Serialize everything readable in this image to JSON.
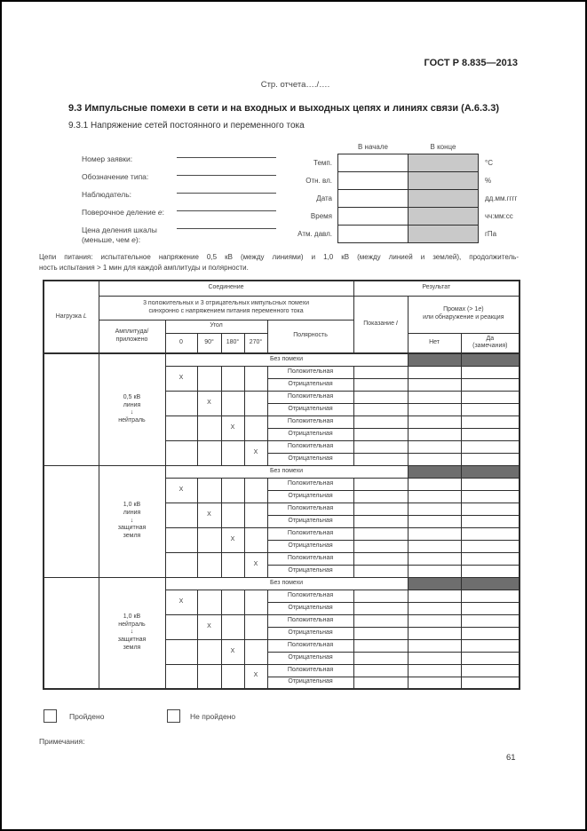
{
  "page": {
    "doc_number": "ГОСТ Р 8.835—2013",
    "page_ref": "Стр. отчета…./….",
    "page_number": "61"
  },
  "section": {
    "title": "9.3  Импульсные помехи в сети и на входных и выходных цепях и линиях связи (А.6.3.3)",
    "subtitle": "9.3.1  Напряжение сетей постоянного и переменного тока"
  },
  "request_form": {
    "fields": [
      {
        "line1": "Номер заявки:"
      },
      {
        "line1": "Обозначение типа:"
      },
      {
        "line1": "Наблюдатель:"
      },
      {
        "line1_pre": "Поверочное деление ",
        "line1_sym": "е",
        "line1_post": ":"
      },
      {
        "line1": "Цена деления шкалы",
        "line2_pre": "(меньше, чем ",
        "line2_sym": "е",
        "line2_post": "):"
      }
    ]
  },
  "conditions_table": {
    "col_start": "В начале",
    "col_end": "В конце",
    "rows": [
      {
        "label": "Темп.",
        "unit": "°C"
      },
      {
        "label": "Отн. вл.",
        "unit": "%"
      },
      {
        "label": "Дата",
        "unit": "дд.мм.гггг"
      },
      {
        "label": "Время",
        "unit": "чч:мм:сс"
      },
      {
        "label": "Атм. давл.",
        "unit": "гПа"
      }
    ]
  },
  "power_note": {
    "line1": "Цепи питания: испытательное напряжение 0,5 кВ (между линиями) и 1,0 кВ (между линией и землей), продолжитель-",
    "line2": "ность испытания > 1 мин для каждой амплитуды и полярности."
  },
  "main_table": {
    "headers": {
      "load_word": "Нагрузка",
      "load_sym": "L",
      "connection": "Соединение",
      "result": "Результат",
      "connection_sub_line1": "3 положительных и 3 отрицательных импульсных помехи",
      "connection_sub_line2": "синхронно с напряжением питания переменного тока",
      "amplitude_line1": "Амплитуда/",
      "amplitude_line2": "приложено",
      "angle": "Угол",
      "angles": [
        "0",
        "90°",
        "180°",
        "270°"
      ],
      "polarity": "Полярность",
      "indication_word": "Показание",
      "indication_sym": "I",
      "miss_line1_pre": "Промах (> 1",
      "miss_sym": "е",
      "miss_line1_post": ")",
      "miss_line2": "или обнаружение и реакция",
      "no": "Нет",
      "yes_line1": "Да",
      "yes_line2": "(замечания)"
    },
    "no_disturbance": "Без помехи",
    "polarity_positive": "Положительная",
    "polarity_negative": "Отрицательная",
    "x_mark": "X",
    "blocks": [
      {
        "amplitude_lines": [
          "0,5 кВ",
          "линия",
          "↓",
          "нейтраль"
        ]
      },
      {
        "amplitude_lines": [
          "1,0 кВ",
          "линия",
          "↓",
          "защитная",
          "земля"
        ]
      },
      {
        "amplitude_lines": [
          "1,0 кВ",
          "нейтраль",
          "↓",
          "защитная",
          "земля"
        ]
      }
    ]
  },
  "verdict": {
    "passed": "Пройдено",
    "failed": "Не пройдено"
  },
  "notes_label": "Примечания:",
  "colors": {
    "shaded_light": "#c9c9c9",
    "shaded_dark": "#6e6e6e"
  }
}
